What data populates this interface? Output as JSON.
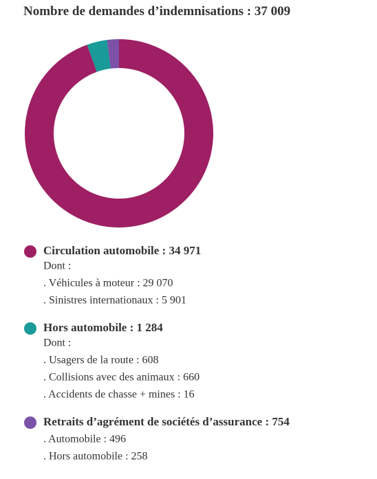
{
  "chart_data": {
    "type": "donut",
    "title": "Nombre de demandes d’indemnisations",
    "total": 37009,
    "total_label": "37 009",
    "separator": " : ",
    "categories": [
      "Circulation automobile",
      "Hors automobile",
      "Retraits d’agrément de sociétés d’assurance"
    ],
    "values": [
      34971,
      1284,
      754
    ],
    "value_labels": [
      "34 971",
      "1 284",
      "754"
    ],
    "colors": [
      "#9e1f63",
      "#1a9a98",
      "#7b52a8"
    ],
    "details": [
      {
        "intro": "Dont :",
        "items": [
          ". Véhicules à moteur : 29 070",
          ". Sinistres internationaux : 5 901"
        ]
      },
      {
        "intro": "Dont :",
        "items": [
          ". Usagers de la route : 608",
          ". Collisions avec des animaux : 660",
          ". Accidents de chasse + mines : 16"
        ]
      },
      {
        "items": [
          ". Automobile : 496",
          ". Hors automobile : 258"
        ]
      }
    ]
  }
}
